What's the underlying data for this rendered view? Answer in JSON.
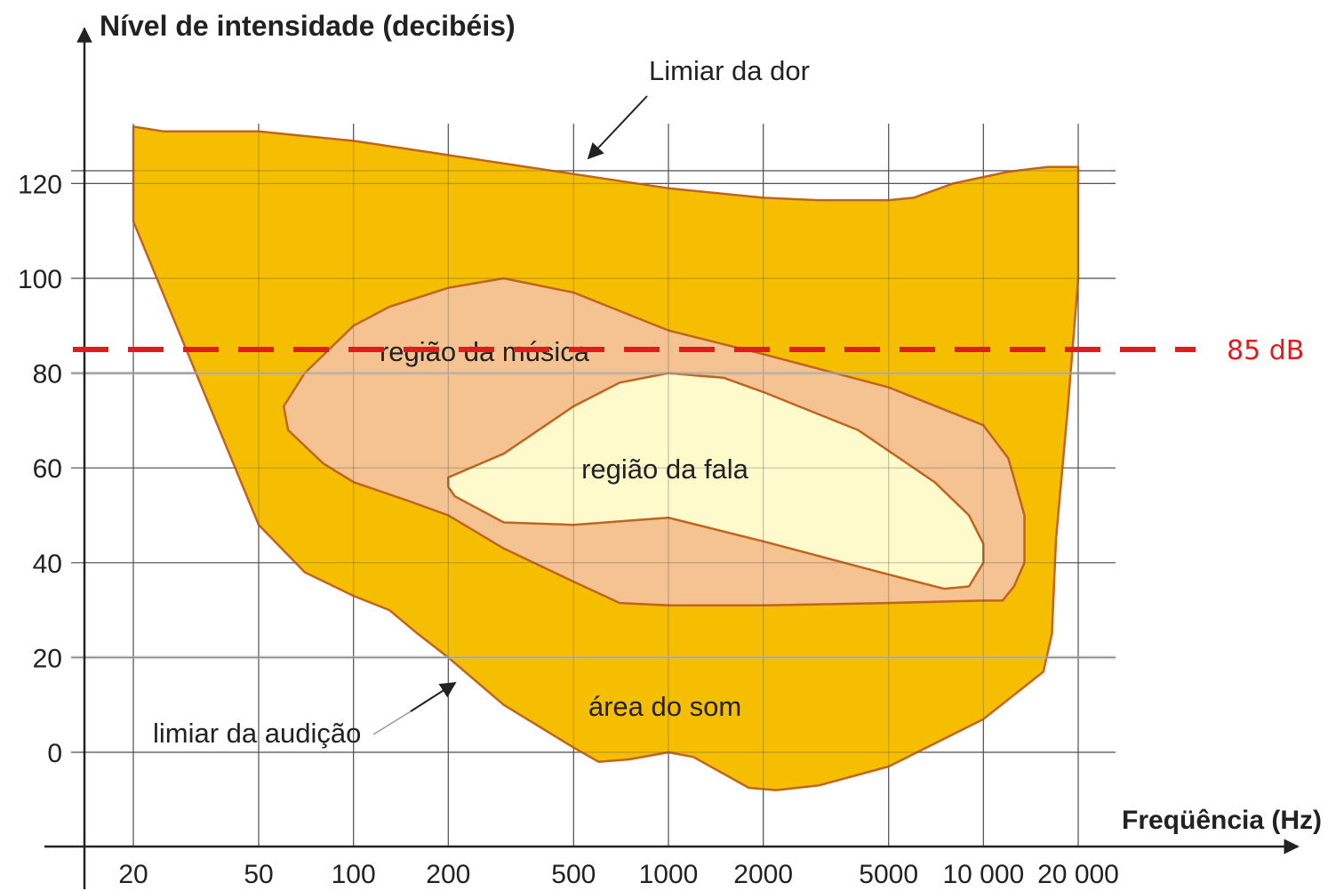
{
  "chart_data": {
    "type": "area",
    "ylabel": "Nível de intensidade (decibéis)",
    "xlabel": "Freqüência (Hz)",
    "x_scale": "log",
    "x_ticks": [
      20,
      50,
      100,
      200,
      500,
      1000,
      2000,
      5000,
      10000,
      20000
    ],
    "x_tick_labels": [
      "20",
      "50",
      "100",
      "200",
      "500",
      "1000",
      "2000",
      "5000",
      "10 000",
      "20 000"
    ],
    "y_ticks": [
      0,
      20,
      40,
      60,
      80,
      100,
      120
    ],
    "y_tick_labels": [
      "0",
      "20",
      "40",
      "60",
      "80",
      "100",
      "120"
    ],
    "ylim": [
      -10,
      130
    ],
    "grid": true,
    "colors": {
      "sound_area": "#f5be00",
      "music_region": "#f5c391",
      "speech_region": "#fffacc",
      "outline": "#c0641e",
      "reference": "#e01c1c"
    },
    "regions": [
      {
        "label": "área do som",
        "boundary": [
          [
            20,
            132
          ],
          [
            25,
            131
          ],
          [
            50,
            131
          ],
          [
            100,
            129
          ],
          [
            200,
            126
          ],
          [
            500,
            122
          ],
          [
            1000,
            119
          ],
          [
            2000,
            117
          ],
          [
            3000,
            116.5
          ],
          [
            5000,
            116.5
          ],
          [
            6000,
            117
          ],
          [
            8000,
            120
          ],
          [
            12000,
            122.5
          ],
          [
            16000,
            123.5
          ],
          [
            20000,
            123.5
          ],
          [
            20000,
            100
          ],
          [
            18500,
            72
          ],
          [
            17000,
            45
          ],
          [
            16500,
            25
          ],
          [
            15500,
            17
          ],
          [
            10000,
            7
          ],
          [
            5000,
            -3
          ],
          [
            3000,
            -7
          ],
          [
            2200,
            -8
          ],
          [
            1800,
            -7.5
          ],
          [
            1200,
            -1
          ],
          [
            1000,
            0
          ],
          [
            750,
            -1.5
          ],
          [
            600,
            -2
          ],
          [
            500,
            1
          ],
          [
            300,
            10
          ],
          [
            200,
            20
          ],
          [
            160,
            25
          ],
          [
            130,
            30
          ],
          [
            100,
            33
          ],
          [
            70,
            38
          ],
          [
            50,
            48
          ],
          [
            20,
            112
          ]
        ]
      },
      {
        "label": "região da música",
        "boundary": [
          [
            60,
            73
          ],
          [
            70,
            80
          ],
          [
            100,
            90
          ],
          [
            130,
            94
          ],
          [
            200,
            98
          ],
          [
            300,
            100
          ],
          [
            500,
            97
          ],
          [
            1000,
            89
          ],
          [
            2000,
            84
          ],
          [
            5000,
            77
          ],
          [
            10000,
            69
          ],
          [
            12000,
            62
          ],
          [
            13500,
            50
          ],
          [
            13500,
            40
          ],
          [
            12500,
            35
          ],
          [
            11500,
            32
          ],
          [
            10000,
            32
          ],
          [
            5000,
            31.5
          ],
          [
            2000,
            31
          ],
          [
            1000,
            31
          ],
          [
            700,
            31.5
          ],
          [
            500,
            36
          ],
          [
            300,
            43
          ],
          [
            200,
            50
          ],
          [
            150,
            53
          ],
          [
            100,
            57
          ],
          [
            80,
            61
          ],
          [
            62,
            68
          ]
        ]
      },
      {
        "label": "região da fala",
        "boundary": [
          [
            200,
            58
          ],
          [
            300,
            63
          ],
          [
            500,
            73
          ],
          [
            700,
            78
          ],
          [
            1000,
            80
          ],
          [
            1500,
            79
          ],
          [
            2000,
            76
          ],
          [
            4000,
            68
          ],
          [
            7000,
            57
          ],
          [
            9000,
            50
          ],
          [
            10000,
            44
          ],
          [
            10000,
            40
          ],
          [
            9000,
            35
          ],
          [
            7500,
            34.5
          ],
          [
            5000,
            37.5
          ],
          [
            2000,
            44.5
          ],
          [
            1000,
            49.5
          ],
          [
            800,
            49
          ],
          [
            500,
            48
          ],
          [
            300,
            48.5
          ],
          [
            210,
            54
          ],
          [
            200,
            56
          ]
        ]
      }
    ],
    "reference_lines": [
      {
        "y": 85,
        "label": "85 dB",
        "style": "dashed"
      }
    ],
    "annotations": [
      {
        "text": "Limiar da dor",
        "points_to": "upper boundary"
      },
      {
        "text": "limiar da audição",
        "points_to": "lower boundary"
      },
      {
        "text": "região da música"
      },
      {
        "text": "região da fala"
      },
      {
        "text": "área do som"
      }
    ]
  }
}
